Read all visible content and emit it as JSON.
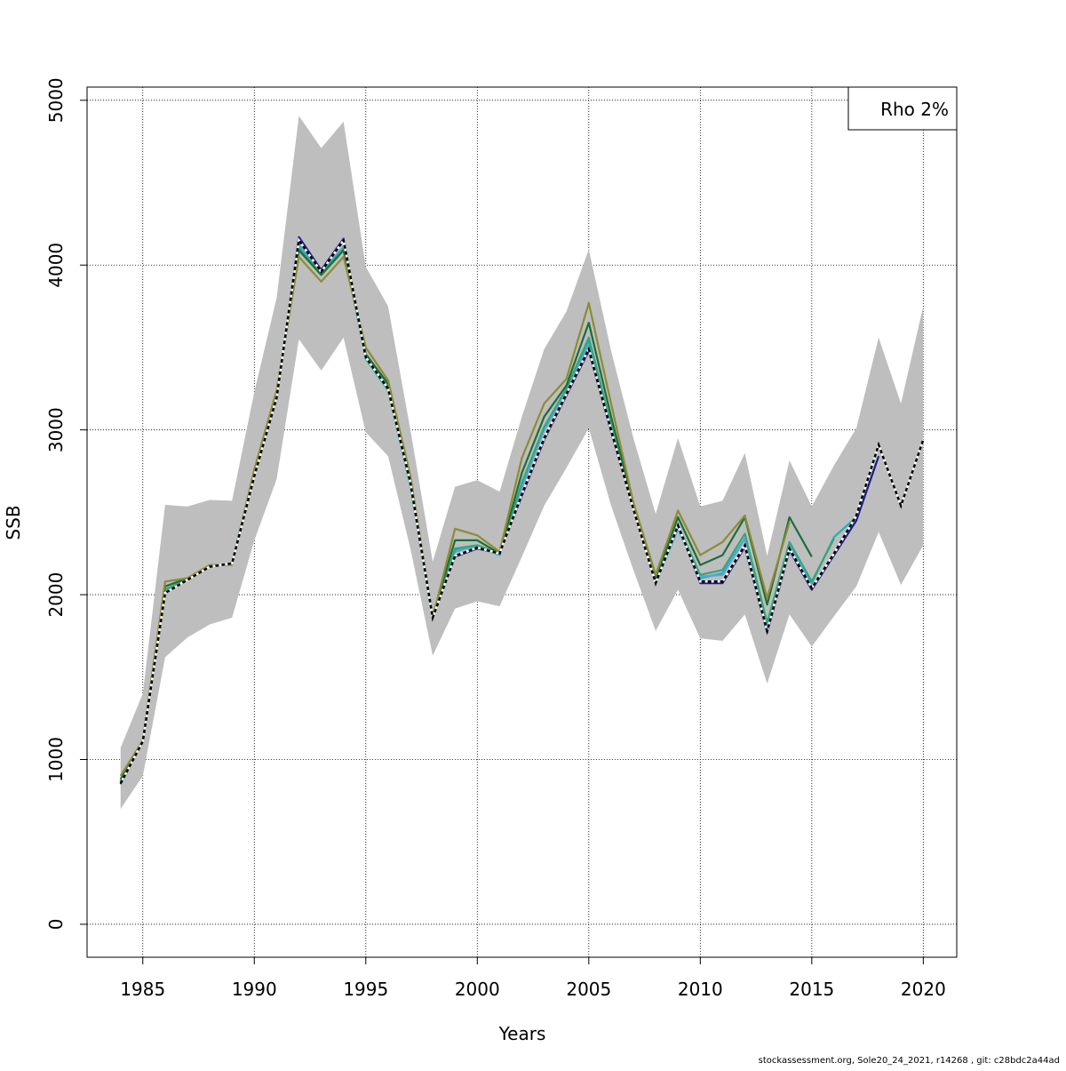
{
  "chart_data": {
    "type": "line",
    "xlabel": "Years",
    "ylabel": "SSB",
    "xlim": [
      1982.5,
      2021.5
    ],
    "ylim": [
      -200,
      5080
    ],
    "x_ticks": [
      1985,
      1990,
      1995,
      2000,
      2005,
      2010,
      2015,
      2020
    ],
    "y_ticks": [
      0,
      1000,
      2000,
      3000,
      4000,
      5000
    ],
    "grid": true,
    "legend": {
      "position": "top-right",
      "text": "Rho 2%"
    },
    "band": {
      "x": [
        1984,
        1985,
        1986,
        1987,
        1988,
        1989,
        1990,
        1991,
        1992,
        1993,
        1994,
        1995,
        1996,
        1997,
        1998,
        1999,
        2000,
        2001,
        2002,
        2003,
        2004,
        2005,
        2006,
        2007,
        2008,
        2009,
        2010,
        2011,
        2012,
        2013,
        2014,
        2015,
        2016,
        2017,
        2018,
        2019,
        2020
      ],
      "upper": [
        1070,
        1400,
        2545,
        2535,
        2575,
        2570,
        3230,
        3800,
        4905,
        4710,
        4870,
        3990,
        3750,
        3000,
        2200,
        2655,
        2695,
        2625,
        3080,
        3490,
        3720,
        4095,
        3480,
        2950,
        2490,
        2950,
        2535,
        2570,
        2860,
        2235,
        2815,
        2535,
        2785,
        3010,
        3560,
        3160,
        3750
      ],
      "lower": [
        700,
        900,
        1620,
        1740,
        1820,
        1860,
        2330,
        2700,
        3550,
        3360,
        3560,
        2985,
        2840,
        2280,
        1630,
        1915,
        1960,
        1930,
        2230,
        2540,
        2770,
        3010,
        2540,
        2150,
        1780,
        2030,
        1735,
        1720,
        1880,
        1460,
        1880,
        1685,
        1870,
        2050,
        2380,
        2060,
        2300
      ]
    },
    "series": [
      {
        "color": "#1a1a8c",
        "x": [
          1984,
          1985,
          1986,
          1987,
          1988,
          1989,
          1990,
          1991,
          1992,
          1993,
          1994,
          1995,
          1996,
          1997,
          1998,
          1999,
          2000,
          2001,
          2002,
          2003,
          2004,
          2005,
          2006,
          2007,
          2008,
          2009,
          2010,
          2011,
          2012,
          2013,
          2014,
          2015,
          2016,
          2017,
          2018
        ],
        "values": [
          850,
          1110,
          2010,
          2090,
          2170,
          2190,
          2720,
          3190,
          4170,
          3970,
          4160,
          3440,
          3250,
          2680,
          1860,
          2230,
          2280,
          2250,
          2600,
          2940,
          3210,
          3480,
          2990,
          2520,
          2070,
          2420,
          2070,
          2070,
          2290,
          1770,
          2270,
          2030,
          2240,
          2450,
          2840
        ]
      },
      {
        "color": "#1fb0b0",
        "x": [
          1984,
          1985,
          1986,
          1987,
          1988,
          1989,
          1990,
          1991,
          1992,
          1993,
          1994,
          1995,
          1996,
          1997,
          1998,
          1999,
          2000,
          2001,
          2002,
          2003,
          2004,
          2005,
          2006,
          2007,
          2008,
          2009,
          2010,
          2011,
          2012,
          2013,
          2014,
          2015,
          2016,
          2017
        ],
        "values": [
          860,
          1115,
          2015,
          2095,
          2170,
          2190,
          2725,
          3200,
          4120,
          3960,
          4110,
          3430,
          3240,
          2660,
          1860,
          2270,
          2290,
          2240,
          2660,
          3010,
          3250,
          3540,
          3020,
          2530,
          2070,
          2400,
          2100,
          2130,
          2340,
          1810,
          2290,
          2070,
          2350,
          2470
        ]
      },
      {
        "color": "#4fa7e0",
        "x": [
          1984,
          1985,
          1986,
          1987,
          1988,
          1989,
          1990,
          1991,
          1992,
          1993,
          1994,
          1995,
          1996,
          1997,
          1998,
          1999,
          2000,
          2001,
          2002,
          2003,
          2004,
          2005,
          2006,
          2007,
          2008,
          2009,
          2010,
          2011,
          2012,
          2013,
          2014,
          2015
        ],
        "values": [
          860,
          1115,
          2020,
          2095,
          2170,
          2190,
          2730,
          3210,
          4130,
          3960,
          4110,
          3440,
          3250,
          2670,
          1860,
          2260,
          2300,
          2240,
          2650,
          3000,
          3230,
          3510,
          3010,
          2530,
          2080,
          2400,
          2110,
          2120,
          2340,
          1800,
          2300,
          2050
        ]
      },
      {
        "color": "#35a678",
        "x": [
          1984,
          1985,
          1986,
          1987,
          1988,
          1989,
          1990,
          1991,
          1992,
          1993,
          1994,
          1995,
          1996,
          1997,
          1998,
          1999,
          2000,
          2001,
          2002,
          2003,
          2004,
          2005,
          2006,
          2007,
          2008,
          2009,
          2010,
          2011,
          2012,
          2013,
          2014,
          2015,
          2016
        ],
        "values": [
          870,
          1115,
          2030,
          2095,
          2170,
          2190,
          2740,
          3220,
          4100,
          3950,
          4100,
          3450,
          3260,
          2680,
          1870,
          2280,
          2300,
          2250,
          2680,
          3020,
          3250,
          3560,
          3030,
          2540,
          2080,
          2420,
          2120,
          2150,
          2370,
          1830,
          2320,
          2080,
          2340
        ]
      },
      {
        "color": "#1a6e3c",
        "x": [
          1984,
          1985,
          1986,
          1987,
          1988,
          1989,
          1990,
          1991,
          1992,
          1993,
          1994,
          1995,
          1996,
          1997,
          1998,
          1999,
          2000,
          2001,
          2002,
          2003,
          2004,
          2005,
          2006,
          2007,
          2008,
          2009,
          2010,
          2011,
          2012,
          2013,
          2014,
          2015
        ],
        "values": [
          880,
          1115,
          2050,
          2100,
          2170,
          2190,
          2750,
          3230,
          4090,
          3940,
          4090,
          3460,
          3280,
          2700,
          1870,
          2330,
          2330,
          2250,
          2740,
          3080,
          3270,
          3650,
          3080,
          2550,
          2090,
          2470,
          2180,
          2240,
          2470,
          1940,
          2470,
          2230
        ]
      },
      {
        "color": "#8c8c33",
        "x": [
          1984,
          1985,
          1986,
          1987,
          1988,
          1989,
          1990,
          1991,
          1992,
          1993,
          1994,
          1995,
          1996,
          1997,
          1998,
          1999,
          2000,
          2001,
          2002,
          2003,
          2004,
          2005,
          2006,
          2007,
          2008,
          2009,
          2010,
          2011,
          2012,
          2013,
          2014
        ],
        "values": [
          900,
          1115,
          2080,
          2100,
          2180,
          2180,
          2760,
          3240,
          4050,
          3900,
          4050,
          3500,
          3300,
          2720,
          1860,
          2400,
          2360,
          2260,
          2830,
          3160,
          3310,
          3770,
          3160,
          2560,
          2120,
          2510,
          2240,
          2320,
          2480,
          1980,
          2440
        ]
      },
      {
        "color": "#000000",
        "dashed": true,
        "x": [
          1984,
          1985,
          1986,
          1987,
          1988,
          1989,
          1990,
          1991,
          1992,
          1993,
          1994,
          1995,
          1996,
          1997,
          1998,
          1999,
          2000,
          2001,
          2002,
          2003,
          2004,
          2005,
          2006,
          2007,
          2008,
          2009,
          2010,
          2011,
          2012,
          2013,
          2014,
          2015,
          2016,
          2017,
          2018,
          2019,
          2020
        ],
        "values": [
          855,
          1110,
          2010,
          2090,
          2170,
          2190,
          2720,
          3195,
          4150,
          3960,
          4150,
          3440,
          3250,
          2680,
          1860,
          2235,
          2285,
          2250,
          2610,
          2950,
          3220,
          3490,
          3000,
          2520,
          2070,
          2420,
          2080,
          2080,
          2300,
          1780,
          2280,
          2040,
          2250,
          2480,
          2910,
          2540,
          2940
        ]
      }
    ]
  },
  "footer": "stockassessment.org, Sole20_24_2021, r14268 , git: c28bdc2a44ad"
}
